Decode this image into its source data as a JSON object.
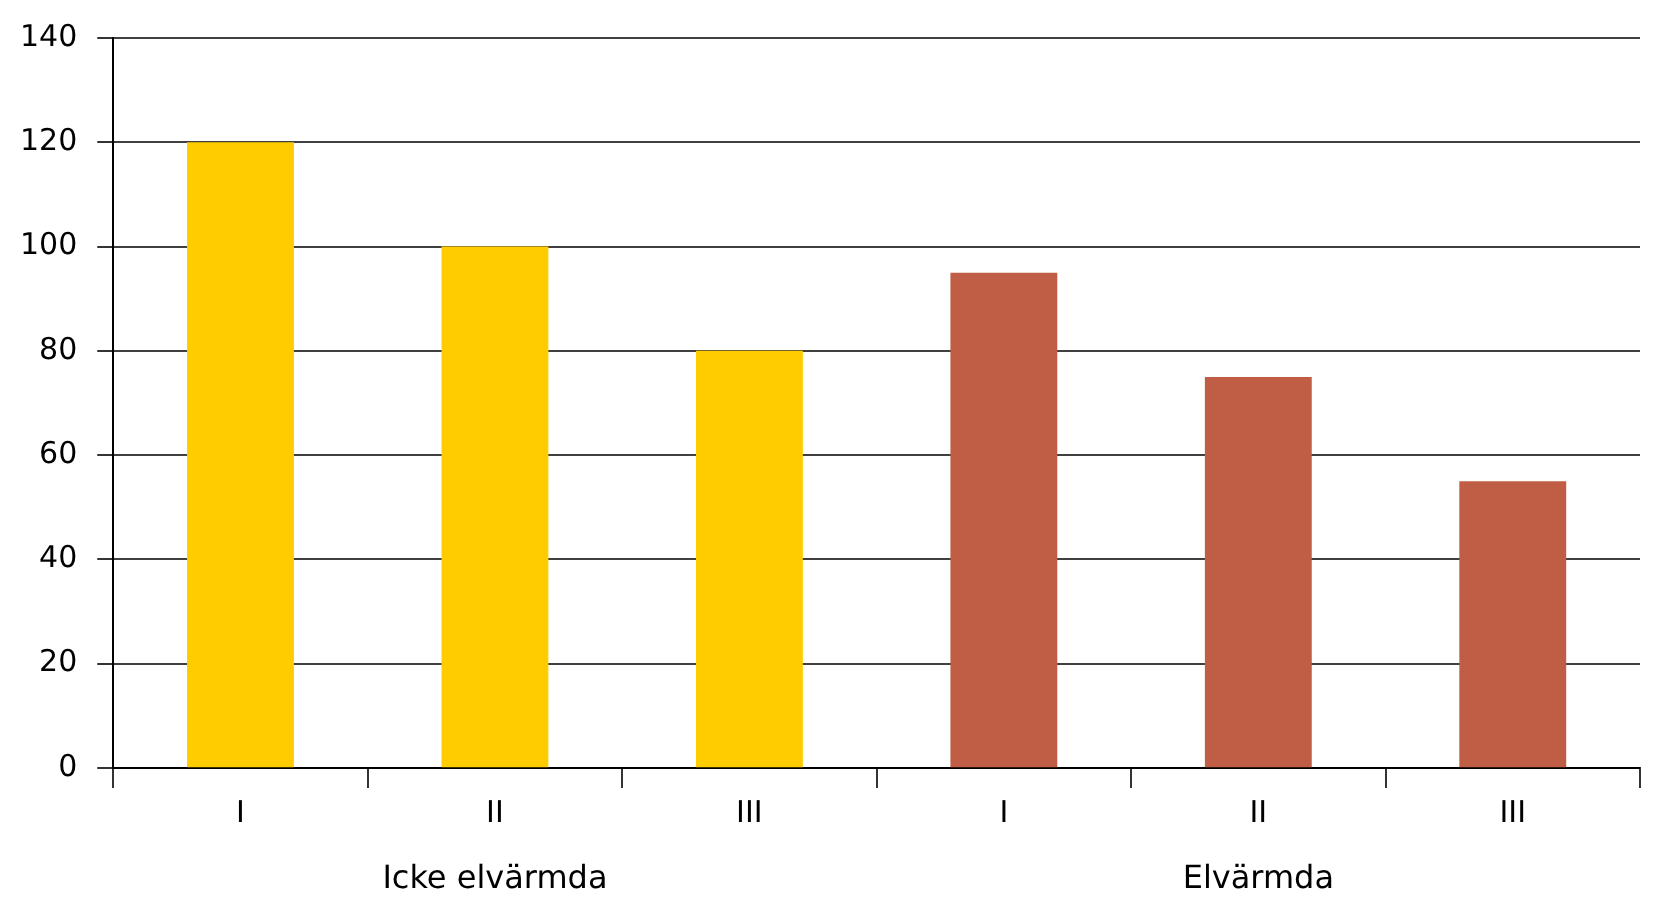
{
  "chart_data": {
    "type": "bar",
    "categories": [
      "I",
      "II",
      "III",
      "I",
      "II",
      "III"
    ],
    "values": [
      120,
      100,
      80,
      95,
      75,
      55
    ],
    "colors": [
      "#ffcc00",
      "#ffcc00",
      "#ffcc00",
      "#c05e45",
      "#c05e45",
      "#c05e45"
    ],
    "ylim": [
      0,
      140
    ],
    "yticks": [
      0,
      20,
      40,
      60,
      80,
      100,
      120,
      140
    ],
    "grid": "y",
    "legend": false,
    "annotations": [
      "Icke elvärmda",
      "Elvärmda"
    ]
  }
}
